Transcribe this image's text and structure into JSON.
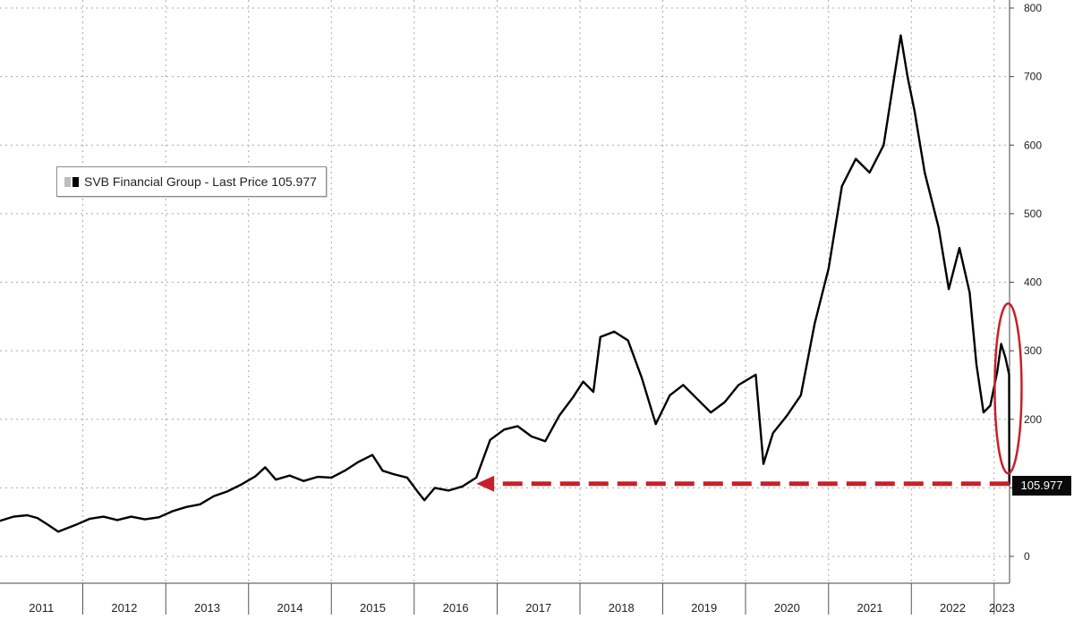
{
  "chart_data": {
    "type": "line",
    "title": "",
    "xlabel": "",
    "ylabel": "",
    "ylim": [
      0,
      800
    ],
    "xlim": [
      "2011-01-01",
      "2023-03-10"
    ],
    "y_ticks": [
      "0",
      "100",
      "200",
      "300",
      "400",
      "500",
      "600",
      "700",
      "800"
    ],
    "x_tick_labels": [
      "2011",
      "2012",
      "2013",
      "2014",
      "2015",
      "2016",
      "2017",
      "2018",
      "2019",
      "2020",
      "2021",
      "2022",
      "2023"
    ],
    "grid": true,
    "legend": {
      "placement": "upper-left",
      "text": "SVB Financial Group - Last Price 105.977"
    },
    "last_price_label": "105.977",
    "series": [
      {
        "name": "SVB Financial Group - Last Price",
        "color": "#000000",
        "points": [
          [
            "2011-01-01",
            52
          ],
          [
            "2011-03-01",
            58
          ],
          [
            "2011-05-01",
            60
          ],
          [
            "2011-06-15",
            56
          ],
          [
            "2011-08-01",
            46
          ],
          [
            "2011-09-15",
            36
          ],
          [
            "2011-10-15",
            40
          ],
          [
            "2011-12-01",
            46
          ],
          [
            "2012-02-01",
            55
          ],
          [
            "2012-04-01",
            58
          ],
          [
            "2012-06-01",
            53
          ],
          [
            "2012-08-01",
            58
          ],
          [
            "2012-10-01",
            54
          ],
          [
            "2012-12-01",
            57
          ],
          [
            "2013-02-01",
            66
          ],
          [
            "2013-04-01",
            72
          ],
          [
            "2013-06-01",
            76
          ],
          [
            "2013-08-01",
            88
          ],
          [
            "2013-10-01",
            95
          ],
          [
            "2013-12-01",
            105
          ],
          [
            "2014-02-01",
            117
          ],
          [
            "2014-03-15",
            130
          ],
          [
            "2014-05-01",
            112
          ],
          [
            "2014-07-01",
            118
          ],
          [
            "2014-09-01",
            110
          ],
          [
            "2014-11-01",
            116
          ],
          [
            "2015-01-01",
            115
          ],
          [
            "2015-03-01",
            125
          ],
          [
            "2015-05-01",
            138
          ],
          [
            "2015-07-01",
            148
          ],
          [
            "2015-08-15",
            125
          ],
          [
            "2015-10-01",
            120
          ],
          [
            "2015-12-01",
            115
          ],
          [
            "2016-01-15",
            95
          ],
          [
            "2016-02-15",
            82
          ],
          [
            "2016-04-01",
            100
          ],
          [
            "2016-06-01",
            96
          ],
          [
            "2016-08-01",
            102
          ],
          [
            "2016-10-01",
            115
          ],
          [
            "2016-12-01",
            170
          ],
          [
            "2017-02-01",
            185
          ],
          [
            "2017-04-01",
            190
          ],
          [
            "2017-06-01",
            175
          ],
          [
            "2017-08-01",
            168
          ],
          [
            "2017-10-01",
            205
          ],
          [
            "2017-12-01",
            232
          ],
          [
            "2018-01-15",
            255
          ],
          [
            "2018-03-01",
            240
          ],
          [
            "2018-04-01",
            320
          ],
          [
            "2018-06-01",
            328
          ],
          [
            "2018-08-01",
            315
          ],
          [
            "2018-10-01",
            260
          ],
          [
            "2018-12-01",
            193
          ],
          [
            "2019-02-01",
            235
          ],
          [
            "2019-04-01",
            250
          ],
          [
            "2019-06-01",
            230
          ],
          [
            "2019-08-01",
            210
          ],
          [
            "2019-10-01",
            225
          ],
          [
            "2019-12-01",
            250
          ],
          [
            "2020-02-15",
            265
          ],
          [
            "2020-03-20",
            135
          ],
          [
            "2020-05-01",
            180
          ],
          [
            "2020-07-01",
            205
          ],
          [
            "2020-09-01",
            235
          ],
          [
            "2020-11-01",
            340
          ],
          [
            "2021-01-01",
            420
          ],
          [
            "2021-03-01",
            540
          ],
          [
            "2021-05-01",
            580
          ],
          [
            "2021-07-01",
            560
          ],
          [
            "2021-09-01",
            600
          ],
          [
            "2021-11-15",
            760
          ],
          [
            "2021-12-15",
            700
          ],
          [
            "2022-01-15",
            650
          ],
          [
            "2022-03-01",
            560
          ],
          [
            "2022-05-01",
            480
          ],
          [
            "2022-06-15",
            390
          ],
          [
            "2022-08-01",
            450
          ],
          [
            "2022-09-15",
            385
          ],
          [
            "2022-10-15",
            280
          ],
          [
            "2022-11-15",
            210
          ],
          [
            "2022-12-15",
            220
          ],
          [
            "2023-01-15",
            270
          ],
          [
            "2023-02-01",
            310
          ],
          [
            "2023-02-20",
            290
          ],
          [
            "2023-03-08",
            265
          ],
          [
            "2023-03-09",
            106
          ]
        ]
      }
    ],
    "annotations": [
      {
        "type": "dashed-arrow",
        "color": "#c8202a",
        "from": [
          "2023-03-09",
          106
        ],
        "to": [
          "2016-10-01",
          106
        ]
      },
      {
        "type": "ellipse",
        "color": "#c8202a",
        "center": [
          "2023-02-20",
          245
        ]
      }
    ]
  }
}
